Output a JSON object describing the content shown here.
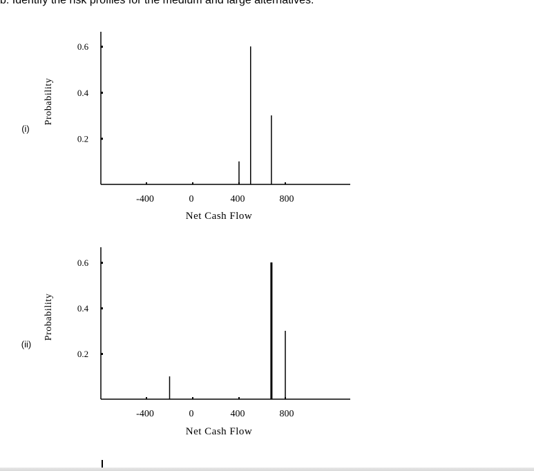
{
  "header": {
    "text": "b. Identify the risk profiles for the medium and large alternatives."
  },
  "chart_data": [
    {
      "type": "bar",
      "panel_label": "(i)",
      "xlabel": "Net Cash Flow",
      "ylabel": "Probability",
      "x_ticks": [
        -400,
        0,
        400,
        800
      ],
      "y_ticks": [
        0.2,
        0.4,
        0.6
      ],
      "xlim": [
        -800,
        1400
      ],
      "ylim": [
        0,
        0.66
      ],
      "points": [
        {
          "x": 400,
          "y": 0.1
        },
        {
          "x": 500,
          "y": 0.6
        },
        {
          "x": 680,
          "y": 0.3
        }
      ]
    },
    {
      "type": "bar",
      "panel_label": "(ii)",
      "xlabel": "Net Cash Flow",
      "ylabel": "Probability",
      "x_ticks": [
        -400,
        0,
        400,
        800
      ],
      "y_ticks": [
        0.2,
        0.4,
        0.6
      ],
      "xlim": [
        -800,
        1400
      ],
      "ylim": [
        0,
        0.66
      ],
      "points": [
        {
          "x": -200,
          "y": 0.1
        },
        {
          "x": 680,
          "y": 0.6
        },
        {
          "x": 800,
          "y": 0.3
        }
      ]
    }
  ]
}
